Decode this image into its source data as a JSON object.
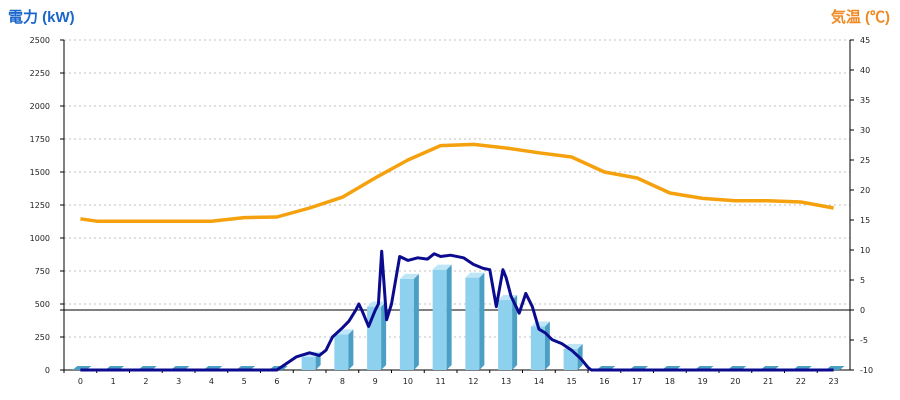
{
  "header": {
    "left_title": "電力 (kW)",
    "right_title": "気温 (℃)"
  },
  "colors": {
    "temperature_line": "#f5a10d",
    "power_line": "#0b0b8f",
    "bar_front": "#8dd1ee",
    "bar_side": "#4c9fc4",
    "bar_top": "#bfe6f7",
    "grid": "#bfbfbf",
    "zero_line": "#000000"
  },
  "chart_data": {
    "type": "bar",
    "categories": [
      "0",
      "1",
      "2",
      "3",
      "4",
      "5",
      "6",
      "7",
      "8",
      "9",
      "10",
      "11",
      "12",
      "13",
      "14",
      "15",
      "16",
      "17",
      "18",
      "19",
      "20",
      "21",
      "22",
      "23"
    ],
    "left_axis": {
      "ylim": [
        0,
        2500
      ],
      "ticks": [
        0,
        250,
        500,
        750,
        1000,
        1250,
        1500,
        1750,
        2000,
        2250,
        2500
      ]
    },
    "right_axis": {
      "ylim": [
        -10,
        45
      ],
      "ticks": [
        -10,
        -5,
        0,
        5,
        10,
        15,
        20,
        25,
        30,
        35,
        40,
        45
      ]
    },
    "grid": true,
    "bars": {
      "axis": "left",
      "values": [
        0,
        0,
        0,
        0,
        0,
        0,
        0,
        100,
        270,
        480,
        690,
        760,
        700,
        530,
        330,
        160,
        0,
        0,
        0,
        0,
        0,
        0,
        0,
        0
      ]
    },
    "temperature_line": {
      "axis": "right",
      "x": [
        0,
        0.5,
        1,
        2,
        3,
        4,
        5,
        6,
        7,
        8,
        9,
        10,
        11,
        12,
        13,
        14,
        15,
        16,
        17,
        18,
        19,
        20,
        21,
        22,
        23
      ],
      "values": [
        15.2,
        14.8,
        14.8,
        14.8,
        14.8,
        14.8,
        15.4,
        15.5,
        17,
        18.8,
        22,
        25,
        27.4,
        27.6,
        27,
        26.2,
        25.5,
        23,
        22,
        19.5,
        18.6,
        18.2,
        18.2,
        18,
        17
      ]
    },
    "power_line": {
      "axis": "left",
      "x": [
        0,
        3,
        6,
        6.3,
        6.6,
        7,
        7.3,
        7.5,
        7.7,
        8,
        8.2,
        8.4,
        8.5,
        8.6,
        8.8,
        9,
        9.1,
        9.2,
        9.35,
        9.5,
        9.75,
        10,
        10.3,
        10.6,
        10.8,
        11,
        11.3,
        11.7,
        12,
        12.3,
        12.5,
        12.7,
        12.9,
        13,
        13.15,
        13.4,
        13.6,
        13.8,
        14,
        14.2,
        14.4,
        14.7,
        15,
        15.3,
        15.5,
        15.6,
        16,
        23
      ],
      "values": [
        0,
        0,
        0,
        50,
        100,
        130,
        110,
        150,
        250,
        320,
        370,
        450,
        500,
        450,
        330,
        450,
        500,
        900,
        380,
        500,
        860,
        830,
        850,
        840,
        880,
        860,
        870,
        850,
        800,
        770,
        760,
        480,
        760,
        700,
        560,
        430,
        580,
        480,
        310,
        280,
        230,
        200,
        150,
        80,
        20,
        0,
        0,
        0
      ]
    }
  }
}
